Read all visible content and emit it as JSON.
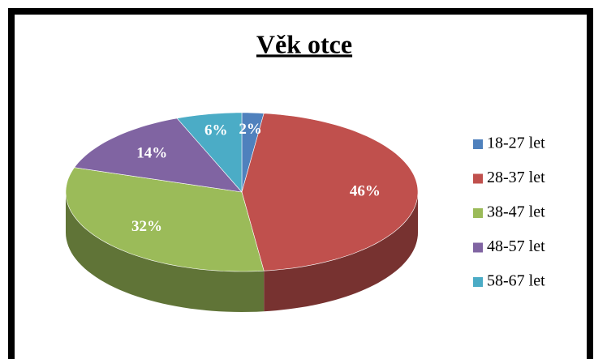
{
  "chart_data": {
    "type": "pie",
    "title": "Věk otce",
    "categories": [
      "18-27 let",
      "28-37 let",
      "38-47 let",
      "48-57 let",
      "58-67 let"
    ],
    "values": [
      2,
      46,
      32,
      14,
      6
    ],
    "value_labels": [
      "2%",
      "46%",
      "32%",
      "14%",
      "6%"
    ],
    "colors": [
      "#4f81bd",
      "#c0504d",
      "#9bbb59",
      "#8064a2",
      "#4bacc6"
    ],
    "legend": "right"
  }
}
